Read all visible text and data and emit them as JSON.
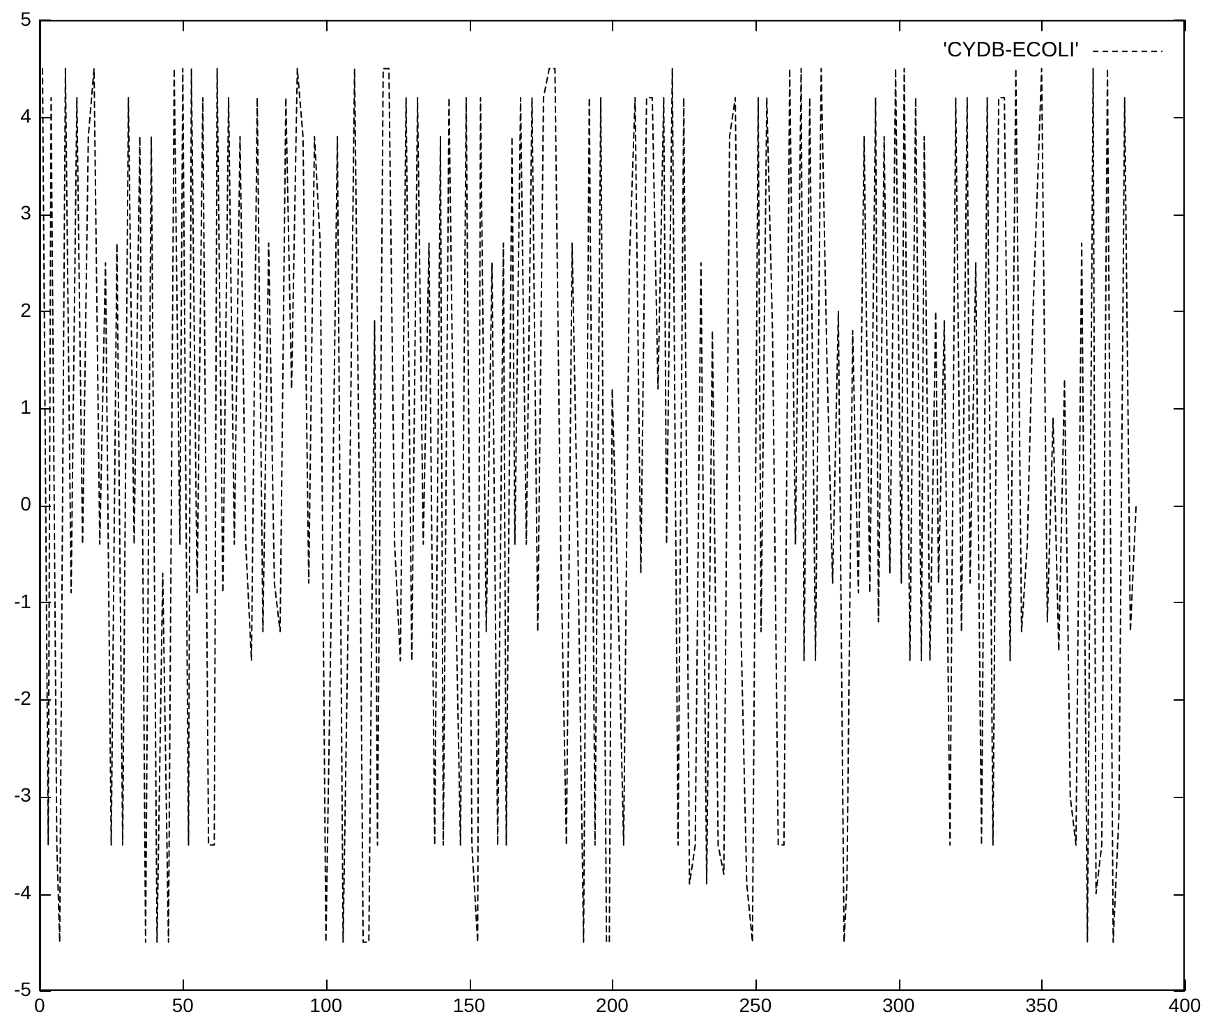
{
  "chart_data": {
    "type": "line",
    "legend": "top right",
    "line_style": "dashed",
    "marker": "none",
    "grid": false,
    "xlim": [
      0,
      400
    ],
    "xticks": [
      0,
      50,
      100,
      150,
      200,
      250,
      300,
      350,
      400
    ],
    "ylim": [
      -5,
      5
    ],
    "yticks": [
      -5,
      -4,
      -3,
      -2,
      -1,
      0,
      1,
      2,
      3,
      4,
      5
    ],
    "series": [
      {
        "name": "'CYDB-ECOLI'",
        "color": "#000000",
        "x": [
          1,
          3,
          4,
          6,
          7,
          9,
          11,
          13,
          15,
          17,
          19,
          21,
          23,
          25,
          27,
          29,
          31,
          33,
          35,
          37,
          39,
          41,
          43,
          45,
          47,
          49,
          50,
          52,
          53,
          55,
          57,
          59,
          61,
          62,
          64,
          66,
          68,
          70,
          72,
          74,
          76,
          78,
          80,
          82,
          84,
          86,
          88,
          90,
          92,
          94,
          96,
          98,
          100,
          102,
          104,
          106,
          108,
          110,
          112,
          113,
          115,
          117,
          118,
          120,
          122,
          124,
          126,
          128,
          130,
          132,
          134,
          136,
          138,
          140,
          141,
          143,
          145,
          147,
          149,
          151,
          153,
          154,
          156,
          158,
          160,
          162,
          163,
          165,
          166,
          168,
          170,
          172,
          174,
          176,
          178,
          180,
          182,
          184,
          186,
          188,
          190,
          192,
          194,
          196,
          198,
          199,
          200,
          202,
          204,
          206,
          208,
          210,
          212,
          214,
          216,
          218,
          219,
          221,
          223,
          225,
          227,
          229,
          231,
          233,
          235,
          237,
          239,
          241,
          243,
          245,
          247,
          249,
          251,
          252,
          254,
          256,
          258,
          260,
          262,
          264,
          266,
          267,
          269,
          271,
          273,
          275,
          277,
          279,
          281,
          282,
          284,
          286,
          288,
          290,
          292,
          293,
          295,
          297,
          299,
          301,
          302,
          304,
          306,
          308,
          309,
          311,
          313,
          314,
          316,
          318,
          320,
          322,
          324,
          325,
          327,
          329,
          331,
          333,
          335,
          337,
          339,
          341,
          343,
          345,
          347,
          350,
          352,
          354,
          356,
          358,
          360,
          362,
          364,
          366,
          368,
          369,
          371,
          373,
          375,
          377,
          379,
          381,
          383
        ],
        "values": [
          4.5,
          -3.5,
          4.2,
          -3.5,
          -4.5,
          4.5,
          -0.9,
          4.2,
          -0.4,
          3.8,
          4.5,
          -0.4,
          2.5,
          -3.5,
          2.7,
          -3.5,
          4.2,
          -0.4,
          3.8,
          -4.5,
          3.8,
          -4.5,
          -0.7,
          -4.5,
          4.5,
          -0.4,
          4.5,
          -3.5,
          4.5,
          -0.9,
          4.2,
          -3.5,
          -3.5,
          4.5,
          -0.9,
          4.2,
          -0.4,
          3.8,
          -0.4,
          -1.6,
          4.2,
          -1.3,
          2.7,
          -0.8,
          -1.3,
          4.2,
          1.2,
          4.5,
          3.8,
          -0.8,
          3.8,
          2.7,
          -4.5,
          -0.8,
          3.8,
          -4.5,
          -0.7,
          4.5,
          -0.7,
          -4.5,
          -4.5,
          1.9,
          -3.5,
          4.5,
          4.5,
          -0.4,
          -1.6,
          4.2,
          -1.6,
          4.2,
          -0.4,
          2.7,
          -3.5,
          3.8,
          -3.5,
          4.2,
          -0.4,
          -3.5,
          4.2,
          -3.5,
          -4.5,
          4.2,
          -1.3,
          2.5,
          -3.5,
          2.7,
          -3.5,
          3.8,
          -0.4,
          4.2,
          -0.4,
          4.2,
          -1.3,
          4.2,
          4.5,
          4.5,
          -0.4,
          -3.5,
          2.7,
          -0.4,
          -4.5,
          4.2,
          -3.5,
          4.2,
          -4.5,
          -4.5,
          1.2,
          -0.9,
          -3.5,
          2.5,
          4.2,
          -0.7,
          4.2,
          4.2,
          1.2,
          4.2,
          -0.4,
          4.5,
          -3.5,
          4.2,
          -3.9,
          -3.5,
          2.5,
          -3.9,
          1.8,
          -3.5,
          -3.8,
          3.8,
          4.2,
          -1.3,
          -3.9,
          -4.5,
          4.2,
          -1.3,
          4.2,
          1.8,
          -3.5,
          -3.5,
          4.5,
          -0.4,
          4.5,
          -1.6,
          4.2,
          -1.6,
          4.5,
          1.5,
          -0.8,
          2,
          -4.5,
          -3.9,
          1.8,
          -0.9,
          3.8,
          -0.9,
          4.2,
          -1.2,
          3.8,
          -0.7,
          4.5,
          -0.8,
          4.5,
          -1.6,
          4.2,
          -1.6,
          3.8,
          -1.6,
          2,
          -0.8,
          1.9,
          -3.5,
          4.2,
          -1.3,
          4.2,
          -0.8,
          2.5,
          -3.5,
          4.2,
          -3.5,
          4.2,
          4.2,
          -1.6,
          4.5,
          -1.3,
          -0.4,
          2,
          4.5,
          -1.2,
          0.9,
          -1.5,
          1.3,
          -3,
          -3.5,
          2.7,
          -4.5,
          4.5,
          -4,
          -3.5,
          4.5,
          -4.5,
          -3.2,
          4.2,
          -1.3,
          0
        ]
      }
    ]
  }
}
